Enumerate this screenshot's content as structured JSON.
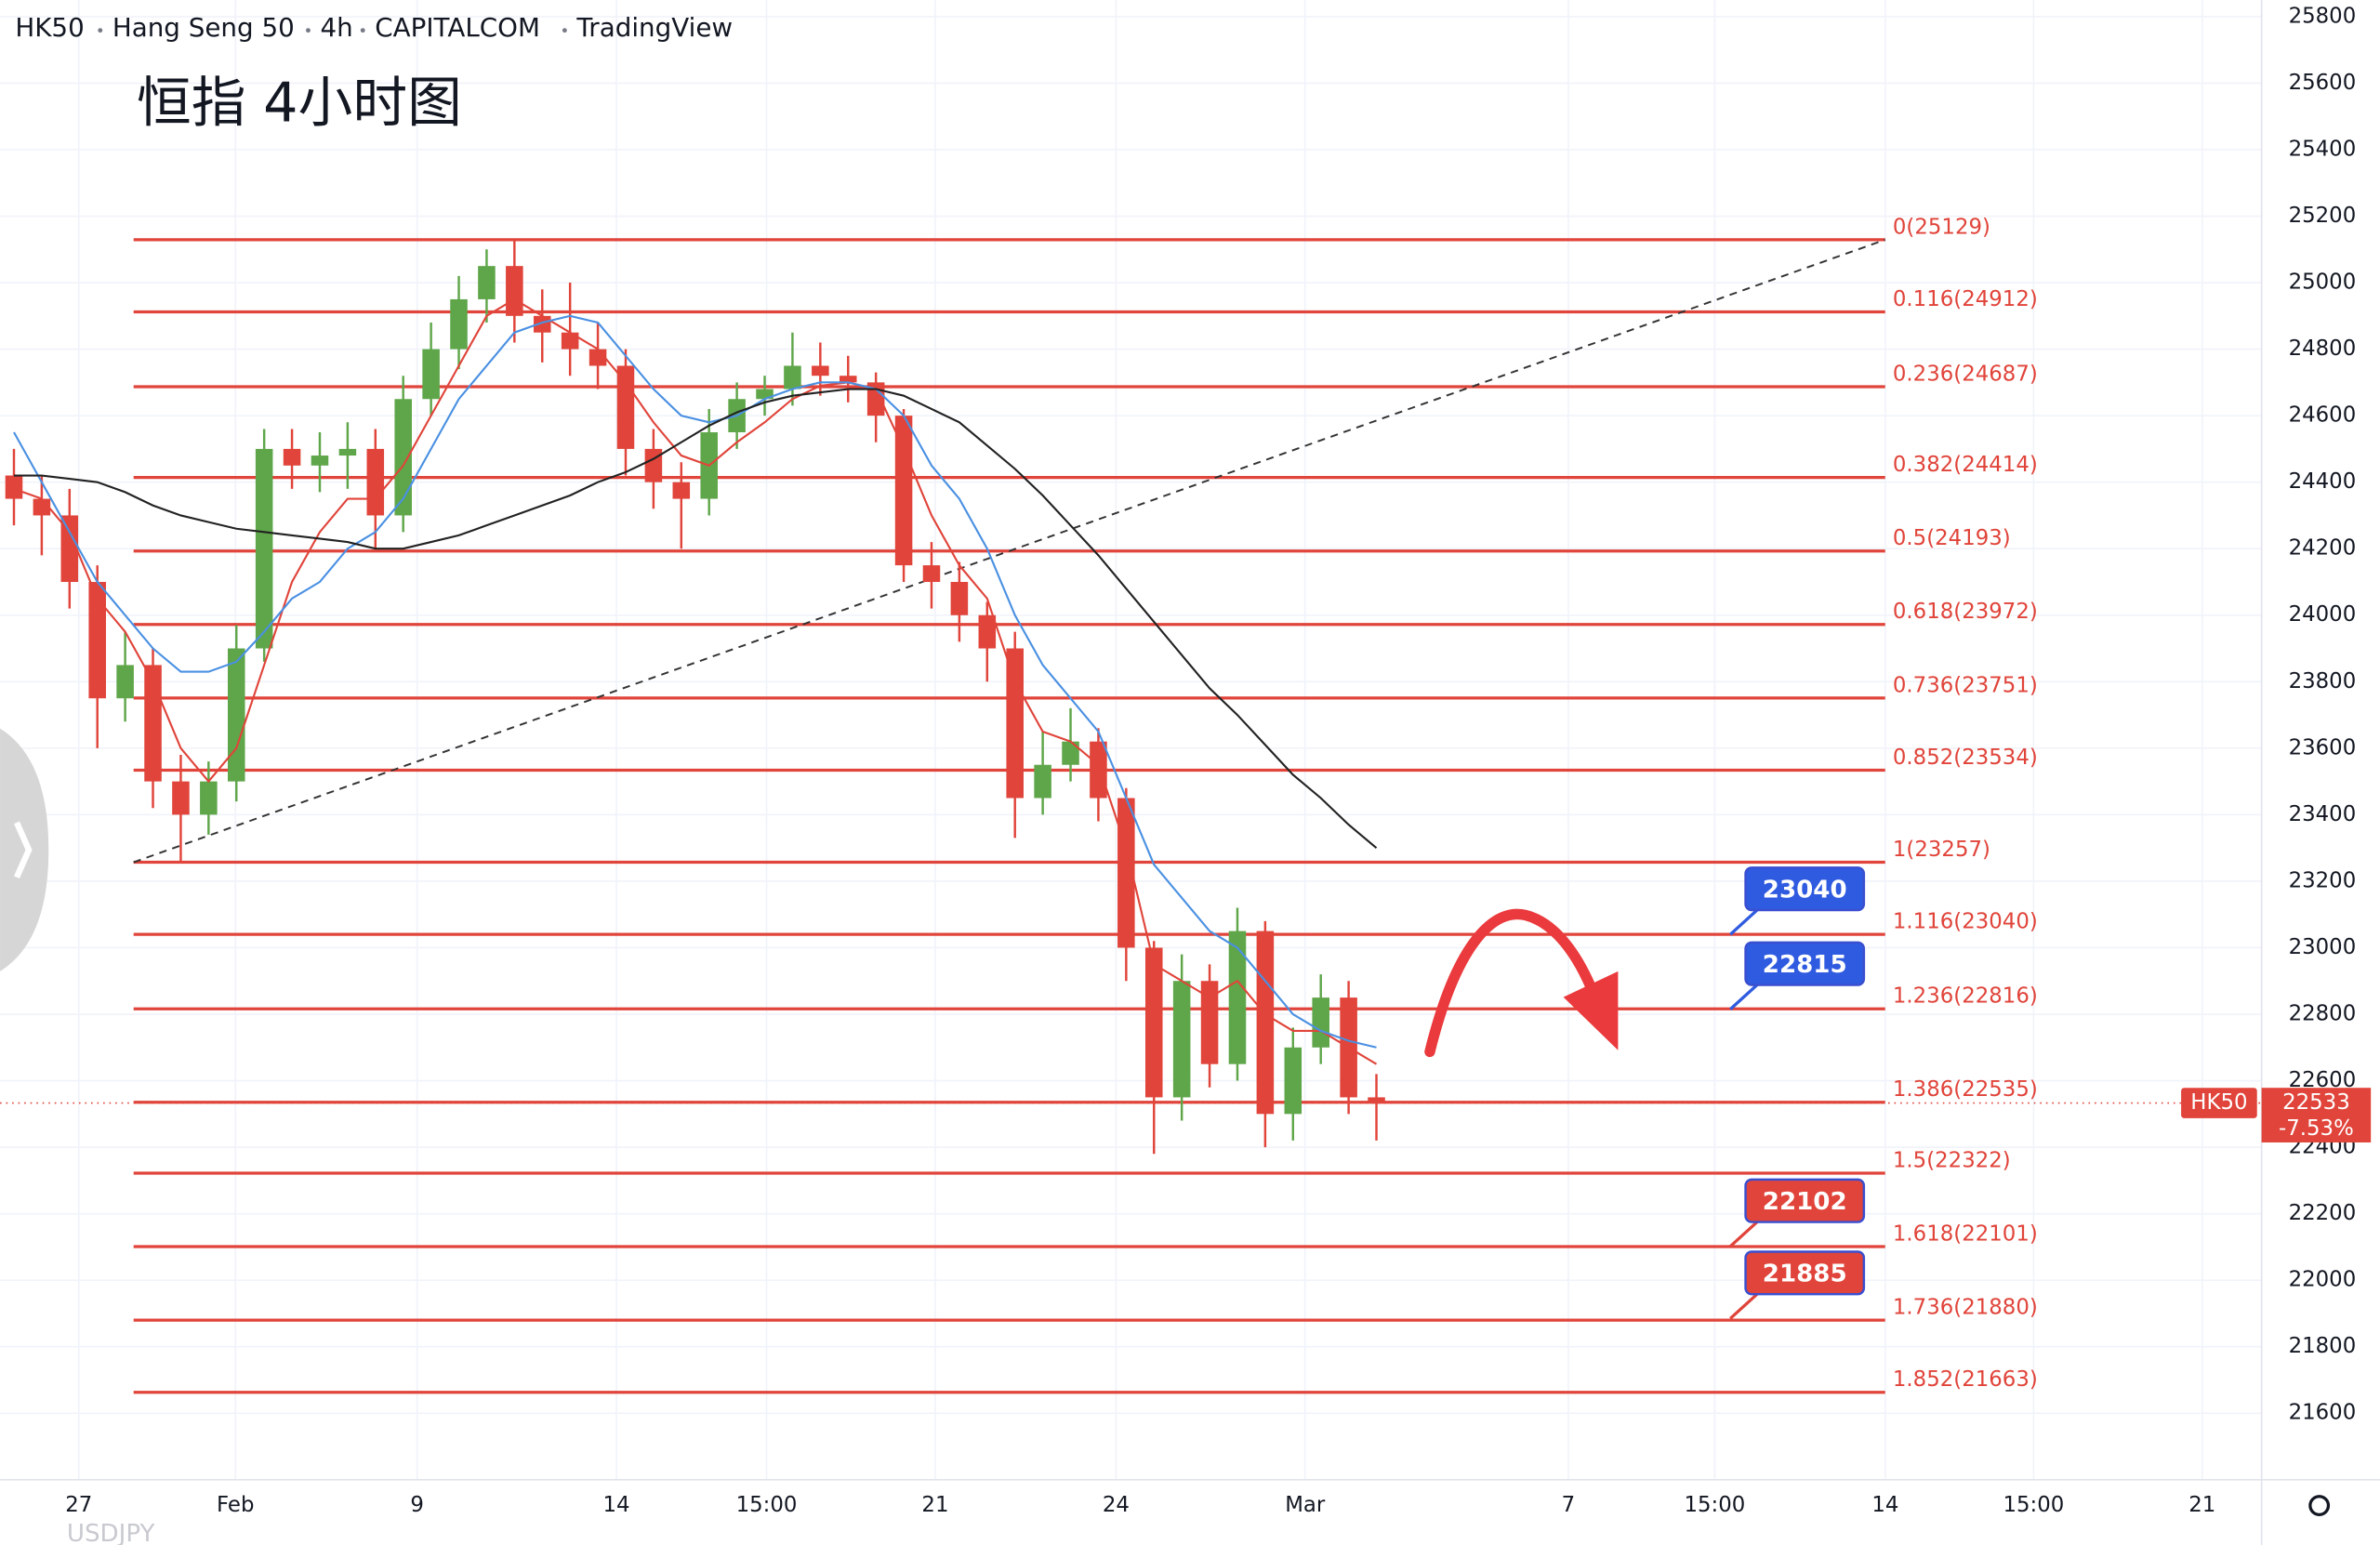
{
  "chart_data": {
    "type": "candlestick",
    "header": {
      "symbol": "HK50",
      "name": "Hang Seng 50",
      "interval": "4h",
      "exchange": "CAPITALCOM",
      "source": "TradingView"
    },
    "title": "恒指 4小时图",
    "next_pane_label": "USDJPY",
    "up_color": "#5fa64a",
    "down_color": "#e0443a",
    "x": [
      1.5,
      4.5,
      7.5,
      10.5,
      13.5,
      16.5,
      19.5,
      22.5,
      25.5,
      28.5,
      31.5,
      34.5,
      37.5,
      40.5,
      43.5,
      46.5,
      49.5,
      52.5,
      55.5,
      58.5,
      61.5,
      64.5,
      67.5,
      70.5,
      73.5,
      76.5,
      79.5,
      82.5,
      85.5,
      88.5,
      91.5,
      94.5,
      97.5,
      100.5,
      103.5,
      106.5,
      109.5,
      112.5,
      115.5,
      118.5,
      121.5,
      124.5,
      127.5,
      130.5,
      133.5,
      136.5,
      139.5,
      142.5,
      145.5,
      148.5
    ],
    "open": [
      24420,
      24350,
      24300,
      24100,
      23750,
      23850,
      23500,
      23400,
      23500,
      23900,
      24500,
      24450,
      24480,
      24500,
      24300,
      24650,
      24800,
      24950,
      25050,
      24900,
      24850,
      24800,
      24750,
      24500,
      24400,
      24350,
      24550,
      24650,
      24680,
      24750,
      24720,
      24700,
      24600,
      24150,
      24100,
      24000,
      23900,
      23450,
      23550,
      23620,
      23450,
      23000,
      22550,
      22900,
      22650,
      23050,
      22500,
      22700,
      22850,
      22550
    ],
    "high": [
      24500,
      24420,
      24380,
      24150,
      23950,
      23900,
      23580,
      23560,
      23970,
      24560,
      24560,
      24550,
      24580,
      24560,
      24720,
      24880,
      25020,
      25100,
      25129,
      24980,
      25000,
      24880,
      24800,
      24560,
      24460,
      24620,
      24700,
      24720,
      24850,
      24820,
      24780,
      24730,
      24620,
      24220,
      24160,
      24040,
      23950,
      23650,
      23720,
      23660,
      23480,
      23020,
      22980,
      22950,
      23120,
      23080,
      22760,
      22920,
      22900,
      22620
    ],
    "low": [
      24270,
      24180,
      24020,
      23600,
      23680,
      23420,
      23260,
      23340,
      23440,
      23860,
      24380,
      24370,
      24380,
      24200,
      24250,
      24600,
      24740,
      24880,
      24820,
      24760,
      24720,
      24680,
      24420,
      24320,
      24200,
      24300,
      24500,
      24600,
      24630,
      24660,
      24640,
      24520,
      24100,
      24020,
      23920,
      23800,
      23330,
      23400,
      23500,
      23380,
      22900,
      22380,
      22480,
      22580,
      22600,
      22400,
      22420,
      22650,
      22500,
      22420
    ],
    "close": [
      24350,
      24300,
      24100,
      23750,
      23850,
      23500,
      23400,
      23500,
      23900,
      24500,
      24450,
      24480,
      24500,
      24300,
      24650,
      24800,
      24950,
      25050,
      24900,
      24850,
      24800,
      24750,
      24500,
      24400,
      24350,
      24550,
      24650,
      24680,
      24750,
      24720,
      24700,
      24600,
      24150,
      24100,
      24000,
      23900,
      23450,
      23550,
      23620,
      23450,
      23000,
      22550,
      22900,
      22650,
      23050,
      22500,
      22700,
      22850,
      22550,
      22533
    ],
    "ma_series": [
      {
        "color": "#e0443a",
        "values": [
          24380,
          24350,
          24250,
          24050,
          23950,
          23800,
          23600,
          23500,
          23600,
          23850,
          24100,
          24250,
          24350,
          24350,
          24450,
          24600,
          24750,
          24900,
          24950,
          24900,
          24850,
          24800,
          24700,
          24580,
          24480,
          24450,
          24520,
          24580,
          24650,
          24690,
          24700,
          24680,
          24500,
          24300,
          24150,
          24050,
          23800,
          23650,
          23620,
          23550,
          23300,
          22950,
          22900,
          22850,
          22900,
          22800,
          22750,
          22750,
          22700,
          22650
        ]
      },
      {
        "color": "#4a90e2",
        "values": [
          24550,
          24400,
          24250,
          24100,
          24000,
          23900,
          23830,
          23830,
          23860,
          23950,
          24050,
          24100,
          24200,
          24250,
          24350,
          24500,
          24650,
          24750,
          24850,
          24880,
          24900,
          24880,
          24780,
          24680,
          24600,
          24580,
          24600,
          24650,
          24680,
          24700,
          24700,
          24680,
          24600,
          24450,
          24350,
          24200,
          24000,
          23850,
          23750,
          23650,
          23450,
          23250,
          23150,
          23050,
          23000,
          22900,
          22800,
          22750,
          22720,
          22700
        ]
      },
      {
        "color": "#222222",
        "values": [
          24420,
          24420,
          24410,
          24400,
          24370,
          24330,
          24300,
          24280,
          24260,
          24250,
          24240,
          24230,
          24220,
          24200,
          24200,
          24220,
          24240,
          24270,
          24300,
          24330,
          24360,
          24400,
          24430,
          24470,
          24520,
          24570,
          24610,
          24640,
          24660,
          24670,
          24680,
          24680,
          24660,
          24620,
          24580,
          24510,
          24440,
          24360,
          24270,
          24180,
          24080,
          23980,
          23880,
          23780,
          23700,
          23610,
          23520,
          23450,
          23370,
          23300
        ]
      }
    ],
    "xlim": [
      0,
      244
    ],
    "xticks": [
      {
        "value": 8.5,
        "label": "27"
      },
      {
        "value": 25.4,
        "label": "Feb"
      },
      {
        "value": 45,
        "label": "9"
      },
      {
        "value": 66.5,
        "label": "14"
      },
      {
        "value": 82.7,
        "label": "15:00"
      },
      {
        "value": 100.9,
        "label": "21"
      },
      {
        "value": 120.4,
        "label": "24"
      },
      {
        "value": 140.8,
        "label": "Mar"
      },
      {
        "value": 169.2,
        "label": "7"
      },
      {
        "value": 185,
        "label": "15:00"
      },
      {
        "value": 203.4,
        "label": "14"
      },
      {
        "value": 219.4,
        "label": "15:00"
      },
      {
        "value": 237.6,
        "label": "21"
      }
    ],
    "ylim": [
      21400,
      25850
    ],
    "yticks": [
      21600,
      21800,
      22000,
      22200,
      22400,
      22600,
      22800,
      23000,
      23200,
      23400,
      23600,
      23800,
      24000,
      24200,
      24400,
      24600,
      24800,
      25000,
      25200,
      25400,
      25600,
      25800
    ],
    "grid": true,
    "fib_color": "#e0443a",
    "fib_levels": [
      {
        "label": "0(25129)",
        "value": 25129
      },
      {
        "label": "0.116(24912)",
        "value": 24912
      },
      {
        "label": "0.236(24687)",
        "value": 24687
      },
      {
        "label": "0.382(24414)",
        "value": 24414
      },
      {
        "label": "0.5(24193)",
        "value": 24193
      },
      {
        "label": "0.618(23972)",
        "value": 23972
      },
      {
        "label": "0.736(23751)",
        "value": 23751
      },
      {
        "label": "0.852(23534)",
        "value": 23534
      },
      {
        "label": "1(23257)",
        "value": 23257
      },
      {
        "label": "1.116(23040)",
        "value": 23040
      },
      {
        "label": "1.236(22816)",
        "value": 22816
      },
      {
        "label": "1.386(22535)",
        "value": 22535
      },
      {
        "label": "1.5(22322)",
        "value": 22322
      },
      {
        "label": "1.618(22101)",
        "value": 22101
      },
      {
        "label": "1.736(21880)",
        "value": 21880
      },
      {
        "label": "1.852(21663)",
        "value": 21663
      }
    ],
    "callouts": [
      {
        "value": 23040,
        "color": "#2f5be0"
      },
      {
        "value": 22815,
        "color": "#2f5be0"
      },
      {
        "value": 22102,
        "color": "#e0443a"
      },
      {
        "value": 21885,
        "color": "#e0443a"
      }
    ],
    "price_tag": {
      "symbol": "HK50",
      "last_price": 22533,
      "change_pct": {
        "value": -7.53,
        "label": "-7.53%"
      },
      "color": "#e0443a"
    }
  }
}
